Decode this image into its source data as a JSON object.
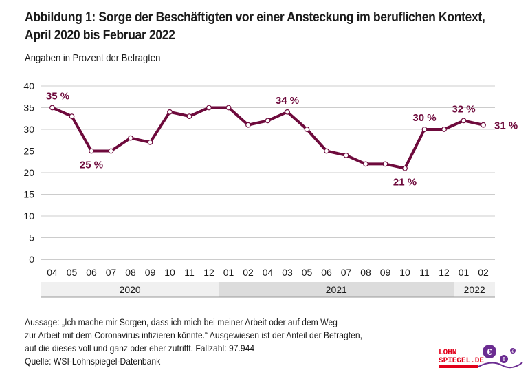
{
  "title": "Abbildung 1: Sorge der Beschäftigten vor einer Ansteckung im beruflichen Kontext, April 2020 bis Februar 2022",
  "title_line1": "Abbildung 1: Sorge der Beschäftigten vor einer Ansteckung im beruflichen Kontext,",
  "title_line2": "April 2020 bis Februar 2022",
  "subtitle": "Angaben in Prozent der Befragten",
  "footer": {
    "line1": "Aussage: „Ich mache mir Sorgen, dass ich mich bei meiner Arbeit oder auf dem Weg",
    "line2": "zur Arbeit mit dem Coronavirus infizieren könnte.“ Ausgewiesen ist der Anteil der Befragten,",
    "line3": "auf die dieses voll und ganz oder eher zutrifft. Fallzahl:  97.944",
    "line4": "Quelle: WSI-Lohnspiegel-Datenbank"
  },
  "logo": {
    "text": "LOHN SPIEGEL.DE",
    "color": "#e2001a",
    "accent": "#6b2c91"
  },
  "chart_data": {
    "type": "line",
    "categories": [
      "04",
      "05",
      "06",
      "07",
      "08",
      "09",
      "10",
      "11",
      "12",
      "01",
      "02",
      "04",
      "03",
      "05",
      "06",
      "07",
      "08",
      "09",
      "10",
      "11",
      "12",
      "01",
      "02"
    ],
    "years": [
      {
        "label": "2020",
        "from": 0,
        "to": 8
      },
      {
        "label": "2021",
        "from": 9,
        "to": 20
      },
      {
        "label": "2022",
        "from": 21,
        "to": 22
      }
    ],
    "values": [
      35,
      33,
      25,
      25,
      28,
      27,
      34,
      33,
      35,
      35,
      31,
      32,
      34,
      30,
      25,
      24,
      22,
      22,
      21,
      30,
      30,
      32,
      31
    ],
    "data_labels": [
      {
        "index": 0,
        "text": "35 %",
        "pos": "above"
      },
      {
        "index": 2,
        "text": "25 %",
        "pos": "below"
      },
      {
        "index": 12,
        "text": "34 %",
        "pos": "above"
      },
      {
        "index": 18,
        "text": "21 %",
        "pos": "below"
      },
      {
        "index": 19,
        "text": "30 %",
        "pos": "above"
      },
      {
        "index": 21,
        "text": "32 %",
        "pos": "above"
      },
      {
        "index": 22,
        "text": "31 %",
        "pos": "right"
      }
    ],
    "yticks": [
      0,
      5,
      10,
      15,
      20,
      25,
      30,
      35,
      40
    ],
    "ylim": [
      0,
      40
    ],
    "grid": true,
    "line_color": "#6e0a3c"
  }
}
